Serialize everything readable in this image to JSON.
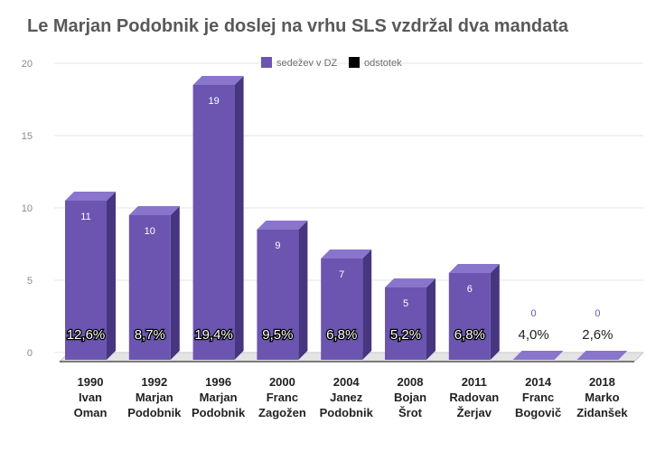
{
  "title": "Le Marjan Podobnik je doslej na vrhu SLS vzdržal dva mandata",
  "colors": {
    "bar_front": "#6b55b0",
    "bar_side": "#463680",
    "bar_top": "#8a75cc",
    "grid": "#e6e6e6",
    "floor": "#bdbdbd"
  },
  "chart_data": {
    "type": "bar",
    "categories": [
      [
        "1990",
        "Ivan",
        "Oman"
      ],
      [
        "1992",
        "Marjan",
        "Podobnik"
      ],
      [
        "1996",
        "Marjan",
        "Podobnik"
      ],
      [
        "2000",
        "Franc",
        "Zagožen"
      ],
      [
        "2004",
        "Janez",
        "Podobnik"
      ],
      [
        "2008",
        "Bojan",
        "Šrot"
      ],
      [
        "2011",
        "Radovan",
        "Žerjav"
      ],
      [
        "2014",
        "Franc",
        "Bogovič"
      ],
      [
        "2018",
        "Marko",
        "Zidanšek"
      ]
    ],
    "series": [
      {
        "name": "sedežev v DZ",
        "values": [
          11,
          10,
          19,
          9,
          7,
          5,
          6,
          0,
          0
        ],
        "labels": [
          "11",
          "10",
          "19",
          "9",
          "7",
          "5",
          "6",
          "0",
          "0"
        ],
        "color": "#6b55b0"
      },
      {
        "name": "odstotek",
        "values": [
          12.6,
          8.7,
          19.4,
          9.5,
          6.8,
          5.2,
          6.8,
          4.0,
          2.6
        ],
        "labels": [
          "12,6%",
          "8,7%",
          "19,4%",
          "9,5%",
          "6,8%",
          "5,2%",
          "6,8%",
          "4,0%",
          "2,6%"
        ],
        "color": "#000000"
      }
    ],
    "yticks": [
      "0",
      "5",
      "10",
      "15",
      "20"
    ],
    "ylim": [
      0,
      20
    ],
    "grid": true,
    "legend_position": "top"
  }
}
